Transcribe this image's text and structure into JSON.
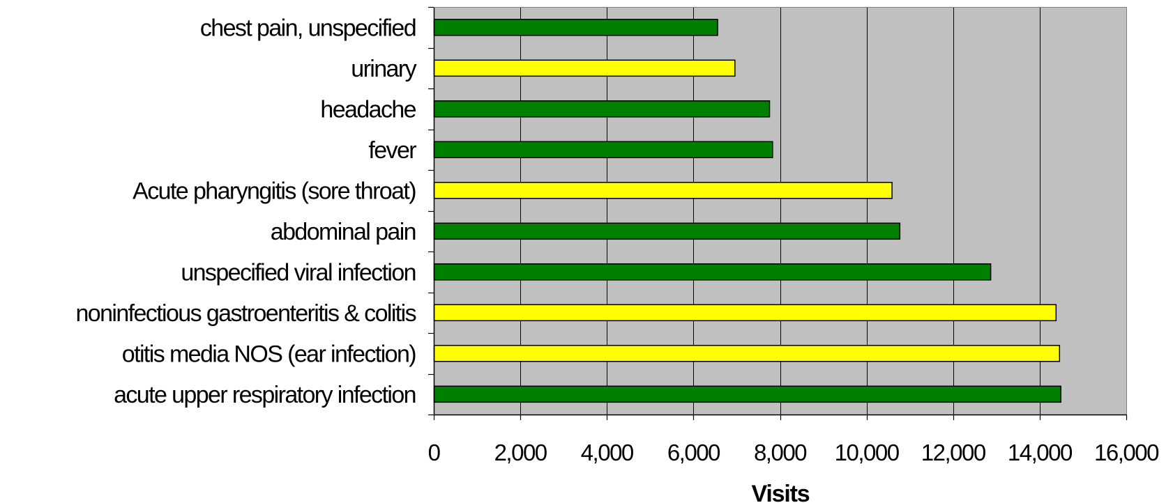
{
  "chart_data": {
    "type": "bar",
    "orientation": "horizontal",
    "categories": [
      "chest pain, unspecified",
      "urinary",
      "headache",
      "fever",
      "Acute pharyngitis (sore throat)",
      "abdominal pain",
      "unspecified viral infection",
      "noninfectious gastroenteritis & colitis",
      "otitis media NOS (ear infection)",
      "acute upper respiratory infection"
    ],
    "values": [
      6550,
      6950,
      7750,
      7820,
      10580,
      10760,
      12860,
      14370,
      14450,
      14480
    ],
    "bar_colors": [
      "#008000",
      "#ffff00",
      "#008000",
      "#008000",
      "#ffff00",
      "#008000",
      "#008000",
      "#ffff00",
      "#ffff00",
      "#008000"
    ],
    "xlabel": "Visits",
    "ylabel": "",
    "xlim": [
      0,
      16000
    ],
    "xticks": [
      0,
      2000,
      4000,
      6000,
      8000,
      10000,
      12000,
      14000,
      16000
    ],
    "xtick_labels": [
      "0",
      "2,000",
      "4,000",
      "6,000",
      "8,000",
      "10,000",
      "12,000",
      "14,000",
      "16,000"
    ],
    "grid": "vertical",
    "legend": "none",
    "plot_background": "#c0c0c0",
    "bar_edge_color": "#000000"
  }
}
